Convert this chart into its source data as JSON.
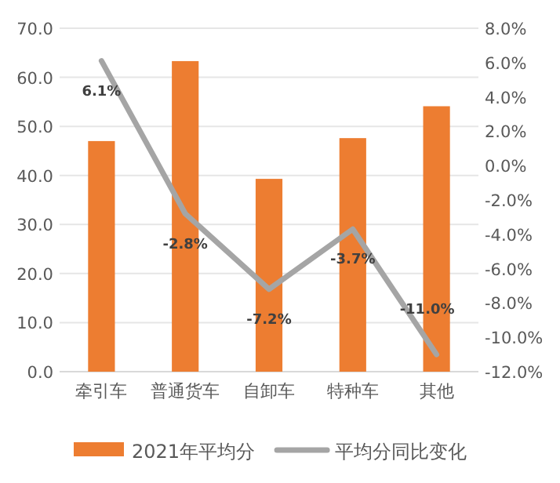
{
  "chart_data": {
    "type": "bar",
    "categories": [
      "牵引车",
      "普通货车",
      "自卸车",
      "特种车",
      "其他"
    ],
    "series": [
      {
        "name": "2021年平均分",
        "color": "#ed7d31",
        "values": [
          47.0,
          63.3,
          39.3,
          47.6,
          54.1
        ]
      },
      {
        "name": "平均分同比变化",
        "type": "line",
        "axis": "y2",
        "color": "#a5a5a5",
        "values": [
          6.1,
          -2.8,
          -7.2,
          -3.7,
          -11.0
        ],
        "value_labels": [
          "6.1%",
          "-2.8%",
          "-7.2%",
          "-3.7%",
          "-11.0%"
        ]
      }
    ],
    "ylim": [
      0,
      70
    ],
    "yticks": [
      {
        "value": 0,
        "label": "0.0"
      },
      {
        "value": 10,
        "label": "10.0"
      },
      {
        "value": 20,
        "label": "20.0"
      },
      {
        "value": 30,
        "label": "30.0"
      },
      {
        "value": 40,
        "label": "40.0"
      },
      {
        "value": 50,
        "label": "50.0"
      },
      {
        "value": 60,
        "label": "60.0"
      },
      {
        "value": 70,
        "label": "70.0"
      }
    ],
    "y2lim": [
      -12,
      8
    ],
    "y2ticks": [
      {
        "value": -12,
        "label": "-12.0%"
      },
      {
        "value": -10,
        "label": "-10.0%"
      },
      {
        "value": -8,
        "label": "-8.0%"
      },
      {
        "value": -6,
        "label": "-6.0%"
      },
      {
        "value": -4,
        "label": "-4.0%"
      },
      {
        "value": -2,
        "label": "-2.0%"
      },
      {
        "value": 0,
        "label": "0.0%"
      },
      {
        "value": 2,
        "label": "2.0%"
      },
      {
        "value": 4,
        "label": "4.0%"
      },
      {
        "value": 6,
        "label": "6.0%"
      },
      {
        "value": 8,
        "label": "8.0%"
      }
    ],
    "grid": "y",
    "legend": "bottom",
    "marker": "none"
  }
}
